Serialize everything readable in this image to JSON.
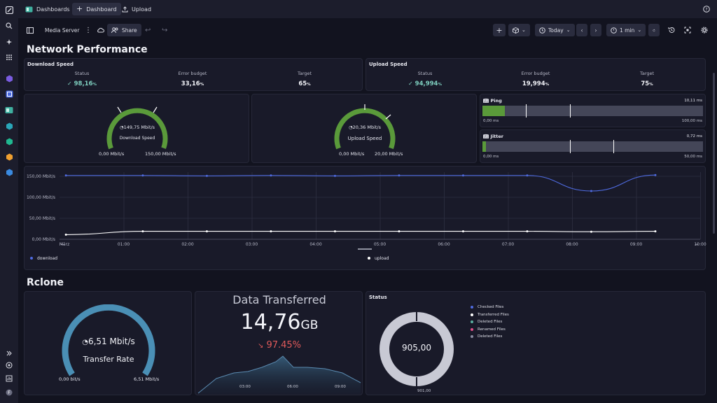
{
  "topbar": {
    "tabs": [
      {
        "label": "Dashboards"
      },
      {
        "label": "Dashboard"
      },
      {
        "label": "Upload"
      }
    ]
  },
  "toolbar": {
    "dashboard_name": "Media Server",
    "share_label": "Share",
    "timeframe_label": "Today",
    "refresh_label": "1 min"
  },
  "sections": {
    "network_title": "Network Performance",
    "rclone_title": "Rclone"
  },
  "download_speed": {
    "title": "Download Speed",
    "status_label": "Status",
    "status_value": "98,16",
    "error_label": "Error budget",
    "error_value": "33,16",
    "target_label": "Target",
    "target_value": "65",
    "unit": "%"
  },
  "upload_speed": {
    "title": "Upload Speed",
    "status_label": "Status",
    "status_value": "94,994",
    "error_label": "Error budget",
    "error_value": "19,994",
    "target_label": "Target",
    "target_value": "75",
    "unit": "%"
  },
  "download_gauge": {
    "value_text": "149,75 Mbit/s",
    "label": "Download Speed",
    "min": "0,00 Mbit/s",
    "max": "150,00 Mbit/s",
    "fraction": 0.998,
    "color": "#5a9a3a"
  },
  "upload_gauge": {
    "value_text": "20,36 Mbit/s",
    "label": "Upload Speed",
    "min": "0,00 Mbit/s",
    "max": "20,00 Mbit/s",
    "fraction": 1.0,
    "color": "#5a9a3a"
  },
  "ping": {
    "title": "Ping",
    "value": "10,11 ms",
    "min": "0,00 ms",
    "max": "100,00 ms",
    "fraction": 0.1011
  },
  "jitter": {
    "title": "Jitter",
    "value": "0,72 ms",
    "min": "0,00 ms",
    "max": "50,00 ms",
    "fraction": 0.0144
  },
  "chart_data": {
    "type": "line",
    "x": [
      "März",
      "01:00",
      "02:00",
      "03:00",
      "04:00",
      "05:00",
      "06:00",
      "07:00",
      "08:00",
      "09:00",
      "10:00"
    ],
    "ytick_labels": [
      "0,00 Mbit/s",
      "50,00 Mbit/s",
      "100,00 Mbit/s",
      "150,00 Mbit/s"
    ],
    "ylim": [
      0,
      160
    ],
    "series": [
      {
        "name": "download",
        "color": "#4f6be0",
        "points": [
          [
            0.1,
            152
          ],
          [
            1.3,
            152
          ],
          [
            2.3,
            151
          ],
          [
            3.3,
            152
          ],
          [
            4.3,
            151
          ],
          [
            5.3,
            152
          ],
          [
            6.3,
            152
          ],
          [
            7.3,
            152
          ],
          [
            8.3,
            115
          ],
          [
            9.3,
            153
          ]
        ]
      },
      {
        "name": "upload",
        "color": "#ffffff",
        "points": [
          [
            0.1,
            11
          ],
          [
            1.3,
            19
          ],
          [
            2.3,
            19
          ],
          [
            3.3,
            19
          ],
          [
            4.3,
            19
          ],
          [
            5.3,
            19
          ],
          [
            6.3,
            19
          ],
          [
            7.3,
            19
          ],
          [
            8.3,
            18
          ],
          [
            9.3,
            19
          ]
        ]
      }
    ],
    "legend_placement": "bottom"
  },
  "rclone_gauge": {
    "value_text": "6,51 Mbit/s",
    "label": "Transfer Rate",
    "min": "0,00 bit/s",
    "max": "6,51 Mbit/s",
    "fraction": 1.0,
    "color": "#4a8fb5"
  },
  "data_transferred": {
    "title": "Data Transferred",
    "value": "14,76",
    "unit": "GB",
    "change": "97.45%",
    "change_color": "#e05a5a",
    "x_ticks": [
      "03:00",
      "06:00",
      "09:00"
    ]
  },
  "status_donut": {
    "title": "Status",
    "center_value": "905,00",
    "bottom_label": "901,00",
    "legend": [
      {
        "label": "Checked Files",
        "color": "#4f6be0"
      },
      {
        "label": "Transferred Files",
        "color": "#ffffff"
      },
      {
        "label": "Deleted Files",
        "color": "#5ab0a0"
      },
      {
        "label": "Renamed Files",
        "color": "#e0508a"
      },
      {
        "label": "Deleted Files",
        "color": "#8a8ca0"
      }
    ]
  }
}
